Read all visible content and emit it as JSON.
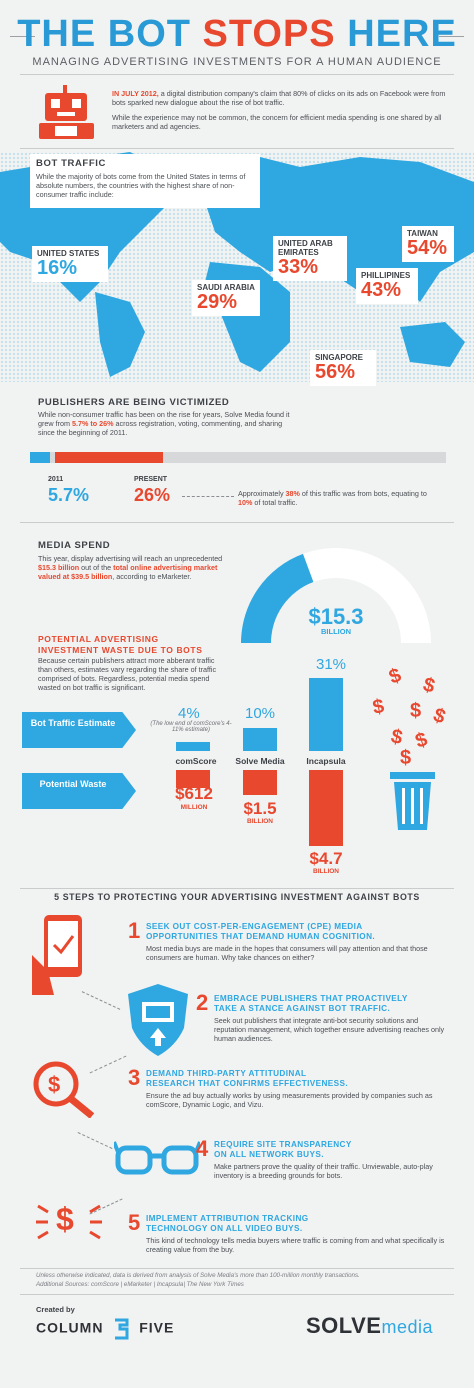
{
  "header": {
    "title_a": "THE BOT ",
    "title_b": "STOPS",
    "title_c": " HERE",
    "subtitle": "MANAGING ADVERTISING INVESTMENTS FOR A HUMAN AUDIENCE"
  },
  "intro": {
    "lead": "IN JULY 2012,",
    "p1": " a digital distribution company's claim that 80% of clicks on its ads on Facebook were from bots sparked new dialogue about the rise of bot traffic.",
    "p2": "While the experience may not be common, the concern for efficient media spending is one shared by all marketers and ad agencies."
  },
  "bot_traffic": {
    "heading": "BOT TRAFFIC",
    "text": "While the majority of bots come from the United States in terms of absolute numbers, the countries with the highest share of non-consumer traffic include:",
    "countries": [
      {
        "name": "UNITED STATES",
        "pct": "16%"
      },
      {
        "name": "SAUDI ARABIA",
        "pct": "29%"
      },
      {
        "name": "UNITED ARAB EMIRATES",
        "pct": "33%"
      },
      {
        "name": "PHILLIPINES",
        "pct": "43%"
      },
      {
        "name": "TAIWAN",
        "pct": "54%"
      },
      {
        "name": "SINGAPORE",
        "pct": "56%"
      }
    ]
  },
  "publishers": {
    "heading": "PUBLISHERS ARE BEING VICTIMIZED",
    "text_a": "While non-consumer traffic has been on the rise for years, Solve Media found it grew from ",
    "text_b": "5.7% to 26%",
    "text_c": " across registration, voting, commenting, and sharing since the beginning of 2011.",
    "label_2011": "2011",
    "val_2011": "5.7%",
    "label_present": "PRESENT",
    "val_present": "26%",
    "note_a": "Approximately ",
    "note_b": "38%",
    "note_c": " of this traffic was from bots, equating to ",
    "note_d": "10%",
    "note_e": " of total traffic.",
    "share_2011": 0.057,
    "share_present": 0.26
  },
  "media": {
    "heading": "MEDIA SPEND",
    "text_a": "This year, display advertising will reach an unprecedented ",
    "text_b": "$15.3 billion",
    "text_c": " out of the ",
    "text_d": "total online advertising market valued at $39.5 billion",
    "text_e": ", according to eMarketer.",
    "gauge_value": "$15.3",
    "gauge_unit": "BILLION",
    "gauge_fraction": 0.387
  },
  "waste": {
    "heading_1": "POTENTIAL ADVERTISING",
    "heading_2": "INVESTMENT WASTE DUE TO BOTS",
    "text": "Because certain publishers attract more abberant traffic than others, estimates vary regarding the share of traffic comprised of bots. Regardless, potential media spend wasted on bot traffic is significant.",
    "row1": "Bot Traffic Estimate",
    "row2": "Potential Waste",
    "note": "(The low end of comScore's 4-11% estimate)",
    "sources": [
      {
        "name": "comScore",
        "pct": "4%",
        "waste": "$612",
        "unit": "MILLION"
      },
      {
        "name": "Solve Media",
        "pct": "10%",
        "waste": "$1.5",
        "unit": "BILLION"
      },
      {
        "name": "Incapsula",
        "pct": "31%",
        "waste": "$4.7",
        "unit": "BILLION"
      }
    ]
  },
  "steps": {
    "heading": "5 STEPS TO PROTECTING YOUR ADVERTISING INVESTMENT AGAINST BOTS",
    "items": [
      {
        "n": "1",
        "h1": "SEEK OUT COST-PER-ENGAGEMENT (CPE) MEDIA",
        "h2": "OPPORTUNITIES THAT DEMAND HUMAN COGNITION.",
        "body": "Most media buys are made in the hopes that consumers will pay attention and that those consumers are human. Why take chances on either?"
      },
      {
        "n": "2",
        "h1": "EMBRACE PUBLISHERS THAT PROACTIVELY",
        "h2": "TAKE A STANCE AGAINST BOT TRAFFIC.",
        "body": "Seek out publishers that integrate anti-bot security solutions and reputation management, which together ensure advertising reaches only human audiences."
      },
      {
        "n": "3",
        "h1": "DEMAND THIRD-PARTY ATTITUDINAL",
        "h2": "RESEARCH THAT CONFIRMS EFFECTIVENESS.",
        "body": "Ensure the ad buy actually works by using measurements provided by companies such as comScore, Dynamic Logic, and Vizu."
      },
      {
        "n": "4",
        "h1": "REQUIRE SITE TRANSPARENCY",
        "h2": "ON ALL NETWORK BUYS.",
        "body": "Make partners prove the quality of their traffic. Unviewable, auto-play inventory is a breeding grounds for bots."
      },
      {
        "n": "5",
        "h1": "IMPLEMENT ATTRIBUTION TRACKING",
        "h2": "TECHNOLOGY ON ALL VIDEO BUYS.",
        "body": "This kind of technology tells media buyers where traffic is coming from and what specifically is creating value from the buy."
      }
    ]
  },
  "footer": {
    "note1": "Unless otherwise indicated, data is derived from analysis of Solve Media's more than 100-million monthly transactions.",
    "note2": "Additional Sources: comScore | eMarketer | Incapsula| The New York Times",
    "created": "Created by",
    "brand_a": "COLUMN",
    "brand_b": "FIVE",
    "solve": "SOLVE",
    "media": "media"
  }
}
